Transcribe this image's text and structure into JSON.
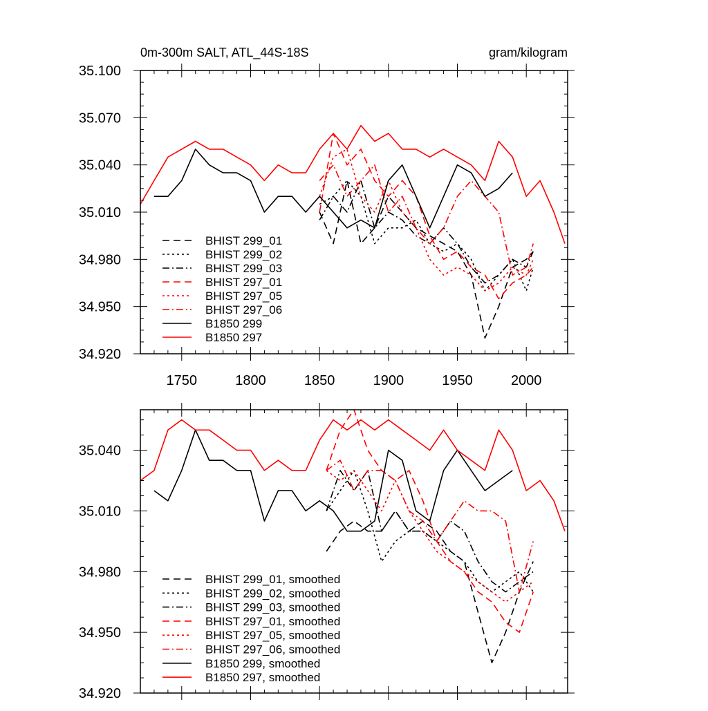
{
  "header": {
    "title": "0m-300m SALT, ATL_44S-18S",
    "units": "gram/kilogram"
  },
  "colors": {
    "black": "#000000",
    "red": "#ff0000"
  },
  "chart_data": [
    {
      "type": "line",
      "title": "0m-300m SALT, ATL_44S-18S",
      "ylabel": "gram/kilogram",
      "xlim": [
        1720,
        2030
      ],
      "ylim": [
        34.92,
        35.1
      ],
      "xticks": [
        1750,
        1800,
        1850,
        1900,
        1950,
        2000
      ],
      "xtick_labels": [
        "1750",
        "1800",
        "1850",
        "1900",
        "1950",
        "2000"
      ],
      "yticks": [
        34.92,
        34.95,
        34.98,
        35.01,
        35.04,
        35.07,
        35.1
      ],
      "ytick_labels": [
        "34.920",
        "34.950",
        "34.980",
        "35.010",
        "35.040",
        "35.070",
        "35.100"
      ],
      "legend_position": "lower-left",
      "series": [
        {
          "name": "BHIST 299_01",
          "color": "#000000",
          "dash": "dashed",
          "x": [
            1850,
            1860,
            1870,
            1880,
            1890,
            1900,
            1910,
            1920,
            1930,
            1940,
            1950,
            1960,
            1970,
            1980,
            1990,
            2000,
            2005
          ],
          "y": [
            35.01,
            34.99,
            35.03,
            34.99,
            35.0,
            35.02,
            35.01,
            35.0,
            34.995,
            34.99,
            34.985,
            34.97,
            34.93,
            34.95,
            34.975,
            34.98,
            34.985
          ]
        },
        {
          "name": "BHIST 299_02",
          "color": "#000000",
          "dash": "dotted",
          "x": [
            1850,
            1860,
            1870,
            1880,
            1890,
            1900,
            1910,
            1920,
            1930,
            1940,
            1950,
            1960,
            1970,
            1980,
            1990,
            2000,
            2005
          ],
          "y": [
            35.015,
            35.02,
            35.03,
            35.02,
            34.99,
            35.0,
            35.0,
            35.005,
            34.99,
            34.985,
            34.99,
            34.98,
            34.96,
            34.97,
            34.98,
            34.96,
            34.975
          ]
        },
        {
          "name": "BHIST 299_03",
          "color": "#000000",
          "dash": "dashdot",
          "x": [
            1850,
            1860,
            1870,
            1880,
            1890,
            1900,
            1910,
            1920,
            1930,
            1940,
            1950,
            1960,
            1970,
            1980,
            1990,
            2000,
            2005
          ],
          "y": [
            35.005,
            35.02,
            35.01,
            35.03,
            35.0,
            35.01,
            35.005,
            34.995,
            34.99,
            35.0,
            34.99,
            34.975,
            34.965,
            34.97,
            34.98,
            34.975,
            34.985
          ]
        },
        {
          "name": "BHIST 297_01",
          "color": "#ff0000",
          "dash": "dashed",
          "x": [
            1850,
            1860,
            1870,
            1880,
            1890,
            1900,
            1910,
            1920,
            1930,
            1940,
            1950,
            1960,
            1970,
            1980,
            1990,
            2000,
            2005
          ],
          "y": [
            35.01,
            35.06,
            35.04,
            35.05,
            35.03,
            35.02,
            35.03,
            35.02,
            34.995,
            34.98,
            34.985,
            34.975,
            34.97,
            34.955,
            34.965,
            34.97,
            34.975
          ]
        },
        {
          "name": "BHIST 297_05",
          "color": "#ff0000",
          "dash": "dotted",
          "x": [
            1850,
            1860,
            1870,
            1880,
            1890,
            1900,
            1910,
            1920,
            1930,
            1940,
            1950,
            1960,
            1970,
            1980,
            1990,
            2000,
            2005
          ],
          "y": [
            35.02,
            35.045,
            35.05,
            35.02,
            35.01,
            35.03,
            35.01,
            35.0,
            34.98,
            34.97,
            34.975,
            34.97,
            34.96,
            34.965,
            34.975,
            34.97,
            34.98
          ]
        },
        {
          "name": "BHIST 297_06",
          "color": "#ff0000",
          "dash": "dashdot",
          "x": [
            1850,
            1860,
            1870,
            1880,
            1890,
            1900,
            1910,
            1920,
            1930,
            1940,
            1950,
            1960,
            1970,
            1980,
            1990,
            2000,
            2005
          ],
          "y": [
            35.03,
            35.04,
            35.02,
            35.03,
            35.04,
            35.01,
            35.02,
            35.0,
            34.99,
            35.0,
            35.02,
            35.03,
            35.02,
            35.01,
            34.97,
            34.975,
            34.99
          ]
        },
        {
          "name": "B1850 299",
          "color": "#000000",
          "dash": "solid",
          "x": [
            1730,
            1740,
            1750,
            1760,
            1770,
            1780,
            1790,
            1800,
            1810,
            1820,
            1830,
            1840,
            1850,
            1860,
            1870,
            1880,
            1890,
            1900,
            1910,
            1920,
            1930,
            1940,
            1950,
            1960,
            1970,
            1980,
            1990
          ],
          "y": [
            35.02,
            35.02,
            35.03,
            35.05,
            35.04,
            35.035,
            35.035,
            35.03,
            35.01,
            35.02,
            35.02,
            35.01,
            35.02,
            35.01,
            35.0,
            35.005,
            35.0,
            35.03,
            35.04,
            35.02,
            35.0,
            35.02,
            35.04,
            35.035,
            35.02,
            35.025,
            35.035
          ]
        },
        {
          "name": "B1850 297",
          "color": "#ff0000",
          "dash": "solid",
          "x": [
            1720,
            1730,
            1740,
            1750,
            1760,
            1770,
            1780,
            1790,
            1800,
            1810,
            1820,
            1830,
            1840,
            1850,
            1860,
            1870,
            1880,
            1890,
            1900,
            1910,
            1920,
            1930,
            1940,
            1950,
            1960,
            1970,
            1980,
            1990,
            2000,
            2010,
            2020,
            2028
          ],
          "y": [
            35.015,
            35.03,
            35.045,
            35.05,
            35.055,
            35.05,
            35.05,
            35.045,
            35.04,
            35.03,
            35.04,
            35.035,
            35.035,
            35.05,
            35.06,
            35.05,
            35.065,
            35.055,
            35.06,
            35.05,
            35.05,
            35.045,
            35.05,
            35.045,
            35.04,
            35.03,
            35.055,
            35.045,
            35.02,
            35.03,
            35.01,
            34.99
          ]
        }
      ]
    },
    {
      "type": "line",
      "title": "",
      "xlim": [
        1720,
        2030
      ],
      "ylim": [
        34.92,
        35.06
      ],
      "xticks": [
        1750,
        1800,
        1850,
        1900,
        1950,
        2000
      ],
      "yticks": [
        34.92,
        34.95,
        34.98,
        35.01,
        35.04
      ],
      "ytick_labels": [
        "34.920",
        "34.950",
        "34.980",
        "35.010",
        "35.040"
      ],
      "legend_position": "lower-left",
      "series": [
        {
          "name": "BHIST 299_01, smoothed",
          "color": "#000000",
          "dash": "dashed",
          "x": [
            1855,
            1865,
            1875,
            1885,
            1895,
            1905,
            1915,
            1925,
            1935,
            1945,
            1955,
            1965,
            1975,
            1985,
            1995,
            2005
          ],
          "y": [
            34.99,
            35.0,
            35.005,
            35.0,
            35.0,
            35.01,
            35.0,
            35.005,
            35.0,
            34.99,
            34.985,
            34.96,
            34.935,
            34.95,
            34.97,
            34.985
          ]
        },
        {
          "name": "BHIST 299_02, smoothed",
          "color": "#000000",
          "dash": "dotted",
          "x": [
            1855,
            1865,
            1875,
            1885,
            1895,
            1905,
            1915,
            1925,
            1935,
            1945,
            1955,
            1965,
            1975,
            1985,
            1995,
            2005
          ],
          "y": [
            35.01,
            35.02,
            35.03,
            35.01,
            34.985,
            34.995,
            35.0,
            35.0,
            34.995,
            34.99,
            34.985,
            34.975,
            34.97,
            34.975,
            34.98,
            34.97
          ]
        },
        {
          "name": "BHIST 299_03, smoothed",
          "color": "#000000",
          "dash": "dashdot",
          "x": [
            1855,
            1865,
            1875,
            1885,
            1895,
            1905,
            1915,
            1925,
            1935,
            1945,
            1955,
            1965,
            1975,
            1985,
            1995,
            2005
          ],
          "y": [
            35.01,
            35.03,
            35.02,
            35.03,
            35.0,
            35.01,
            35.0,
            35.0,
            34.995,
            35.005,
            35.0,
            34.985,
            34.975,
            34.97,
            34.975,
            34.98
          ]
        },
        {
          "name": "BHIST 297_01, smoothed",
          "color": "#ff0000",
          "dash": "dashed",
          "x": [
            1855,
            1865,
            1875,
            1885,
            1895,
            1905,
            1915,
            1925,
            1935,
            1945,
            1955,
            1965,
            1975,
            1985,
            1995,
            2005
          ],
          "y": [
            35.03,
            35.05,
            35.06,
            35.04,
            35.03,
            35.025,
            35.03,
            35.015,
            34.995,
            34.985,
            34.98,
            34.97,
            34.965,
            34.955,
            34.95,
            34.97
          ]
        },
        {
          "name": "BHIST 297_05, smoothed",
          "color": "#ff0000",
          "dash": "dotted",
          "x": [
            1855,
            1865,
            1875,
            1885,
            1895,
            1905,
            1915,
            1925,
            1935,
            1945,
            1955,
            1965,
            1975,
            1985,
            1995,
            2005
          ],
          "y": [
            35.03,
            35.025,
            35.03,
            35.02,
            35.01,
            35.025,
            35.01,
            35.0,
            34.99,
            34.985,
            34.98,
            34.975,
            34.97,
            34.965,
            34.97,
            34.975
          ]
        },
        {
          "name": "BHIST 297_06, smoothed",
          "color": "#ff0000",
          "dash": "dashdot",
          "x": [
            1855,
            1865,
            1875,
            1885,
            1895,
            1905,
            1915,
            1925,
            1935,
            1945,
            1955,
            1965,
            1975,
            1985,
            1995,
            2005
          ],
          "y": [
            35.03,
            35.035,
            35.02,
            35.03,
            35.03,
            35.025,
            35.01,
            35.005,
            34.995,
            35.005,
            35.015,
            35.01,
            35.01,
            35.005,
            34.97,
            34.995
          ]
        },
        {
          "name": "B1850 299, smoothed",
          "color": "#000000",
          "dash": "solid",
          "x": [
            1730,
            1740,
            1750,
            1760,
            1770,
            1780,
            1790,
            1800,
            1810,
            1820,
            1830,
            1840,
            1850,
            1860,
            1870,
            1880,
            1890,
            1900,
            1910,
            1920,
            1930,
            1940,
            1950,
            1960,
            1970,
            1980,
            1990
          ],
          "y": [
            35.02,
            35.015,
            35.03,
            35.05,
            35.035,
            35.035,
            35.03,
            35.03,
            35.005,
            35.02,
            35.02,
            35.01,
            35.015,
            35.01,
            35.0,
            35.0,
            35.005,
            35.04,
            35.035,
            35.01,
            35.005,
            35.03,
            35.04,
            35.03,
            35.02,
            35.025,
            35.03
          ]
        },
        {
          "name": "B1850 297, smoothed",
          "color": "#ff0000",
          "dash": "solid",
          "x": [
            1720,
            1730,
            1740,
            1750,
            1760,
            1770,
            1780,
            1790,
            1800,
            1810,
            1820,
            1830,
            1840,
            1850,
            1860,
            1870,
            1880,
            1890,
            1900,
            1910,
            1920,
            1930,
            1940,
            1950,
            1960,
            1970,
            1980,
            1990,
            2000,
            2010,
            2020,
            2028
          ],
          "y": [
            35.025,
            35.03,
            35.05,
            35.055,
            35.05,
            35.05,
            35.045,
            35.04,
            35.04,
            35.03,
            35.035,
            35.03,
            35.03,
            35.045,
            35.055,
            35.05,
            35.055,
            35.05,
            35.055,
            35.05,
            35.045,
            35.04,
            35.05,
            35.04,
            35.035,
            35.03,
            35.05,
            35.04,
            35.02,
            35.025,
            35.015,
            35.0
          ]
        }
      ]
    }
  ]
}
